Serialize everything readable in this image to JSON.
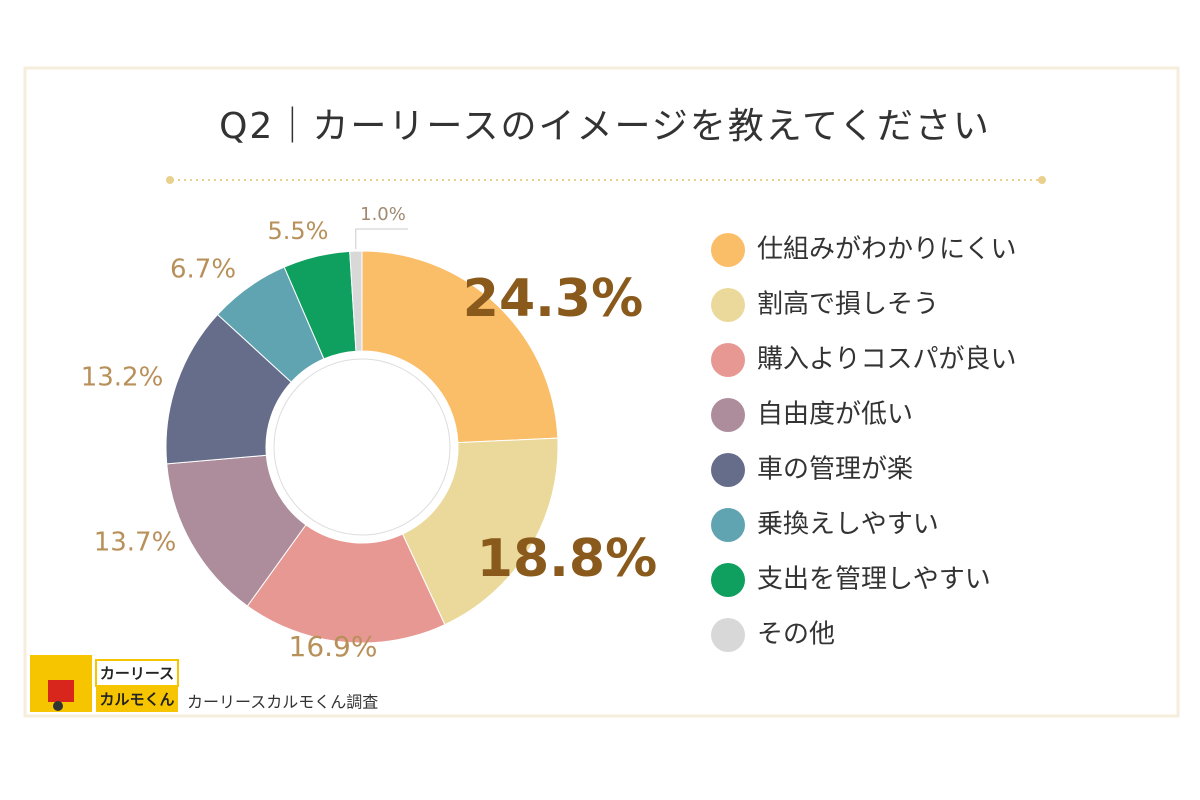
{
  "chart_data": {
    "type": "donut",
    "title": "Q2｜カーリースのイメージを教えてください",
    "categories": [
      "仕組みがわかりにくい",
      "割高で損しそう",
      "購入よりコスパが良い",
      "自由度が低い",
      "車の管理が楽",
      "乗換えしやすい",
      "支出を管理しやすい",
      "その他"
    ],
    "values": [
      24.3,
      18.8,
      16.9,
      13.7,
      13.2,
      6.7,
      5.5,
      1.0
    ],
    "value_labels": [
      "24.3%",
      "18.8%",
      "16.9%",
      "13.7%",
      "13.2%",
      "6.7%",
      "5.5%",
      "1.0%"
    ],
    "colors": [
      "#fbbe68",
      "#ebd99b",
      "#e89893",
      "#ad8c9b",
      "#666d8b",
      "#5fa4b0",
      "#0f9f5f",
      "#d8d8d8"
    ],
    "source": "カーリースカルモくん調査"
  },
  "logo": {
    "line1": "カーリース",
    "line2": "カルモくん"
  }
}
